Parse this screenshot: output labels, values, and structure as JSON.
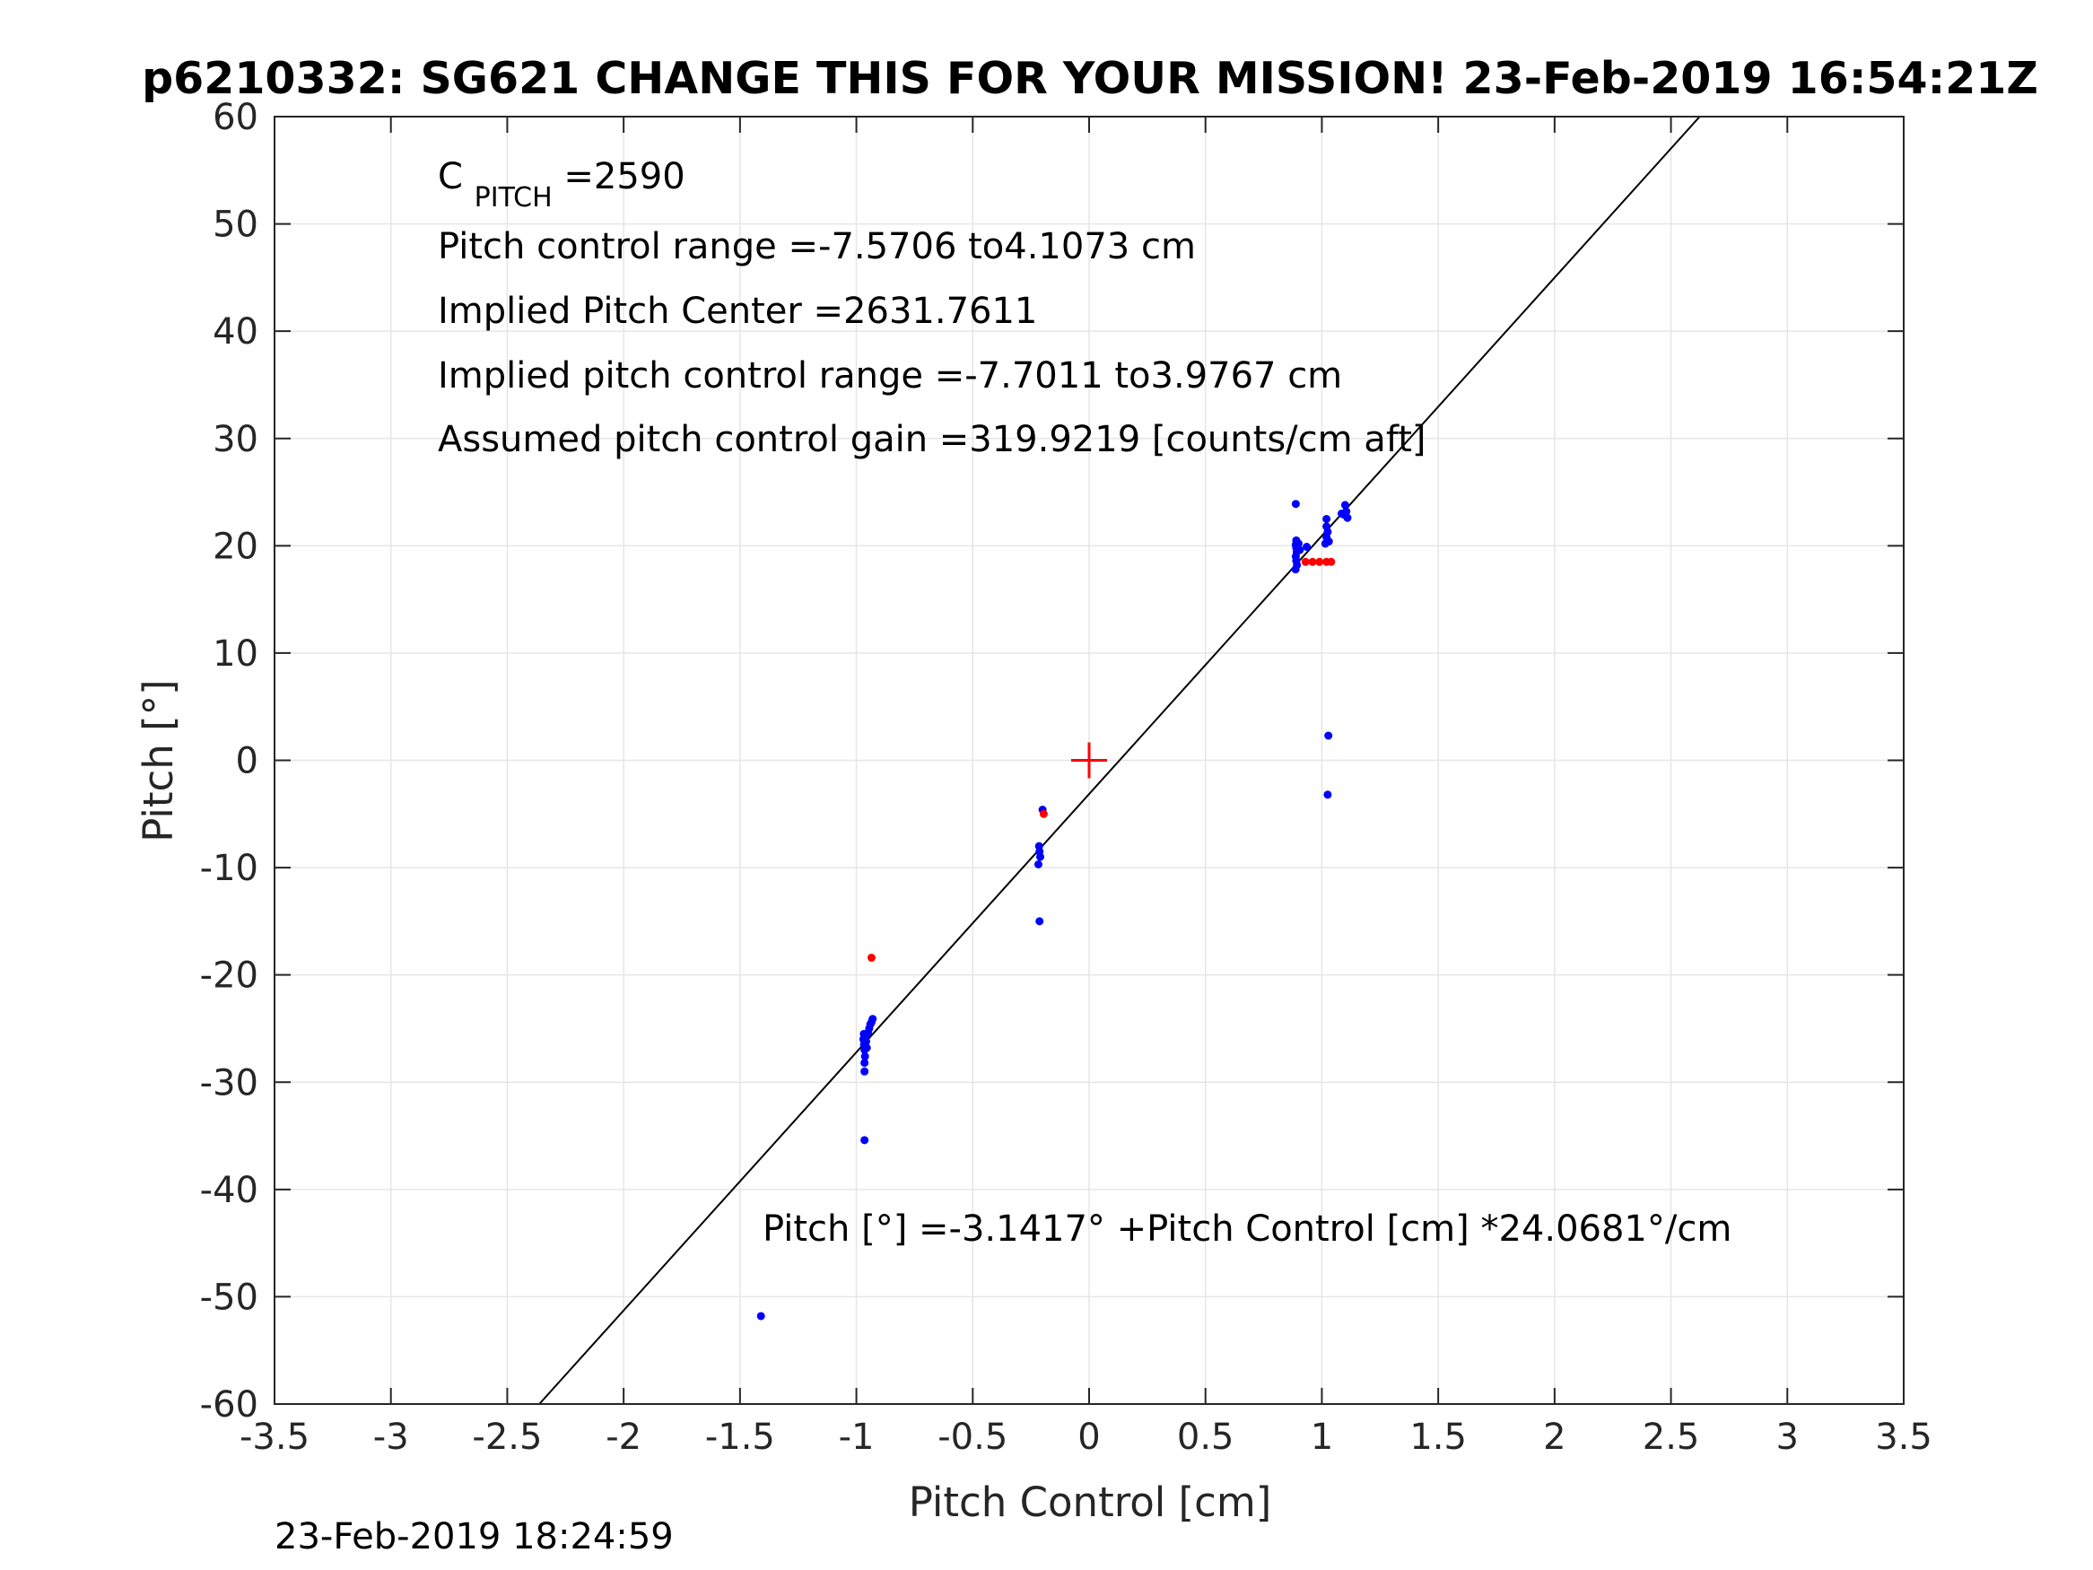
{
  "chart_data": {
    "type": "scatter",
    "title": "p6210332: SG621 CHANGE THIS FOR YOUR MISSION! 23-Feb-2019 16:54:21Z",
    "xlabel": "Pitch Control [cm]",
    "ylabel": "Pitch [°]",
    "xlim": [
      -3.5,
      3.5
    ],
    "ylim": [
      -60,
      60
    ],
    "xticks": [
      -3.5,
      -3,
      -2.5,
      -2,
      -1.5,
      -1,
      -0.5,
      0,
      0.5,
      1,
      1.5,
      2,
      2.5,
      3,
      3.5
    ],
    "xtick_labels": [
      "-3.5",
      "-3",
      "-2.5",
      "-2",
      "-1.5",
      "-1",
      "-0.5",
      "0",
      "0.5",
      "1",
      "1.5",
      "2",
      "2.5",
      "3",
      "3.5"
    ],
    "yticks": [
      -60,
      -50,
      -40,
      -30,
      -20,
      -10,
      0,
      10,
      20,
      30,
      40,
      50,
      60
    ],
    "ytick_labels": [
      "-60",
      "-50",
      "-40",
      "-30",
      "-20",
      "-10",
      "0",
      "10",
      "20",
      "30",
      "40",
      "50",
      "60"
    ],
    "grid": true,
    "colors": {
      "blue": "#0000ff",
      "red": "#ff0000",
      "line": "#000000",
      "grid": "#e6e6e6",
      "axes": "#262626"
    },
    "series": [
      {
        "color": "#0000ff",
        "points": [
          [
            -1.41,
            -51.8
          ],
          [
            -0.965,
            -35.4
          ],
          [
            -0.965,
            -29.0
          ],
          [
            -0.965,
            -28.2
          ],
          [
            -0.963,
            -27.6
          ],
          [
            -0.965,
            -27.0
          ],
          [
            -0.967,
            -26.5
          ],
          [
            -0.97,
            -26.0
          ],
          [
            -0.968,
            -25.5
          ],
          [
            -0.962,
            -25.8
          ],
          [
            -0.958,
            -26.2
          ],
          [
            -0.955,
            -26.8
          ],
          [
            -0.95,
            -25.4
          ],
          [
            -0.945,
            -25.0
          ],
          [
            -0.94,
            -24.6
          ],
          [
            -0.935,
            -24.4
          ],
          [
            -0.93,
            -24.1
          ],
          [
            -0.2,
            -4.6
          ],
          [
            -0.215,
            -8.0
          ],
          [
            -0.213,
            -8.5
          ],
          [
            -0.21,
            -9.0
          ],
          [
            -0.218,
            -9.7
          ],
          [
            -0.213,
            -15.0
          ],
          [
            0.888,
            23.9
          ],
          [
            0.89,
            20.5
          ],
          [
            0.888,
            20.1
          ],
          [
            0.89,
            19.8
          ],
          [
            0.892,
            19.4
          ],
          [
            0.888,
            19.0
          ],
          [
            0.89,
            18.6
          ],
          [
            0.893,
            18.2
          ],
          [
            0.887,
            17.8
          ],
          [
            0.9,
            20.2
          ],
          [
            0.905,
            19.6
          ],
          [
            0.935,
            19.9
          ],
          [
            1.02,
            22.5
          ],
          [
            1.02,
            21.8
          ],
          [
            1.025,
            21.3
          ],
          [
            1.02,
            20.8
          ],
          [
            1.03,
            20.4
          ],
          [
            1.015,
            20.2
          ],
          [
            1.028,
            2.3
          ],
          [
            1.025,
            -3.2
          ],
          [
            1.1,
            23.8
          ],
          [
            1.105,
            23.2
          ],
          [
            1.095,
            22.9
          ],
          [
            1.11,
            22.6
          ],
          [
            1.085,
            23.0
          ]
        ]
      },
      {
        "color": "#ff0000",
        "points": [
          [
            -0.935,
            -18.4
          ],
          [
            -0.195,
            -5.0
          ],
          [
            0.93,
            18.5
          ],
          [
            0.96,
            18.5
          ],
          [
            0.99,
            18.5
          ],
          [
            1.02,
            18.5
          ],
          [
            1.04,
            18.5
          ]
        ]
      }
    ],
    "center_marker": {
      "x": 0,
      "y": 0,
      "color": "#ff0000",
      "shape": "plus"
    },
    "fit_line": {
      "intercept": -3.1417,
      "slope": 24.0681,
      "color": "#000000"
    },
    "annotations": {
      "c_pitch_main": "C",
      "c_pitch_sub": "PITCH",
      "c_pitch_value": " =2590",
      "range": "Pitch control range =-7.5706 to4.1073 cm",
      "center": "Implied Pitch Center =2631.7611",
      "implied_range": "Implied pitch control range =-7.7011 to3.9767 cm",
      "gain": "Assumed pitch control gain =319.9219 [counts/cm aft]",
      "equation": "Pitch [°] =-3.1417° +Pitch Control [cm] *24.0681°/cm"
    },
    "footer": "23-Feb-2019 18:24:59"
  }
}
